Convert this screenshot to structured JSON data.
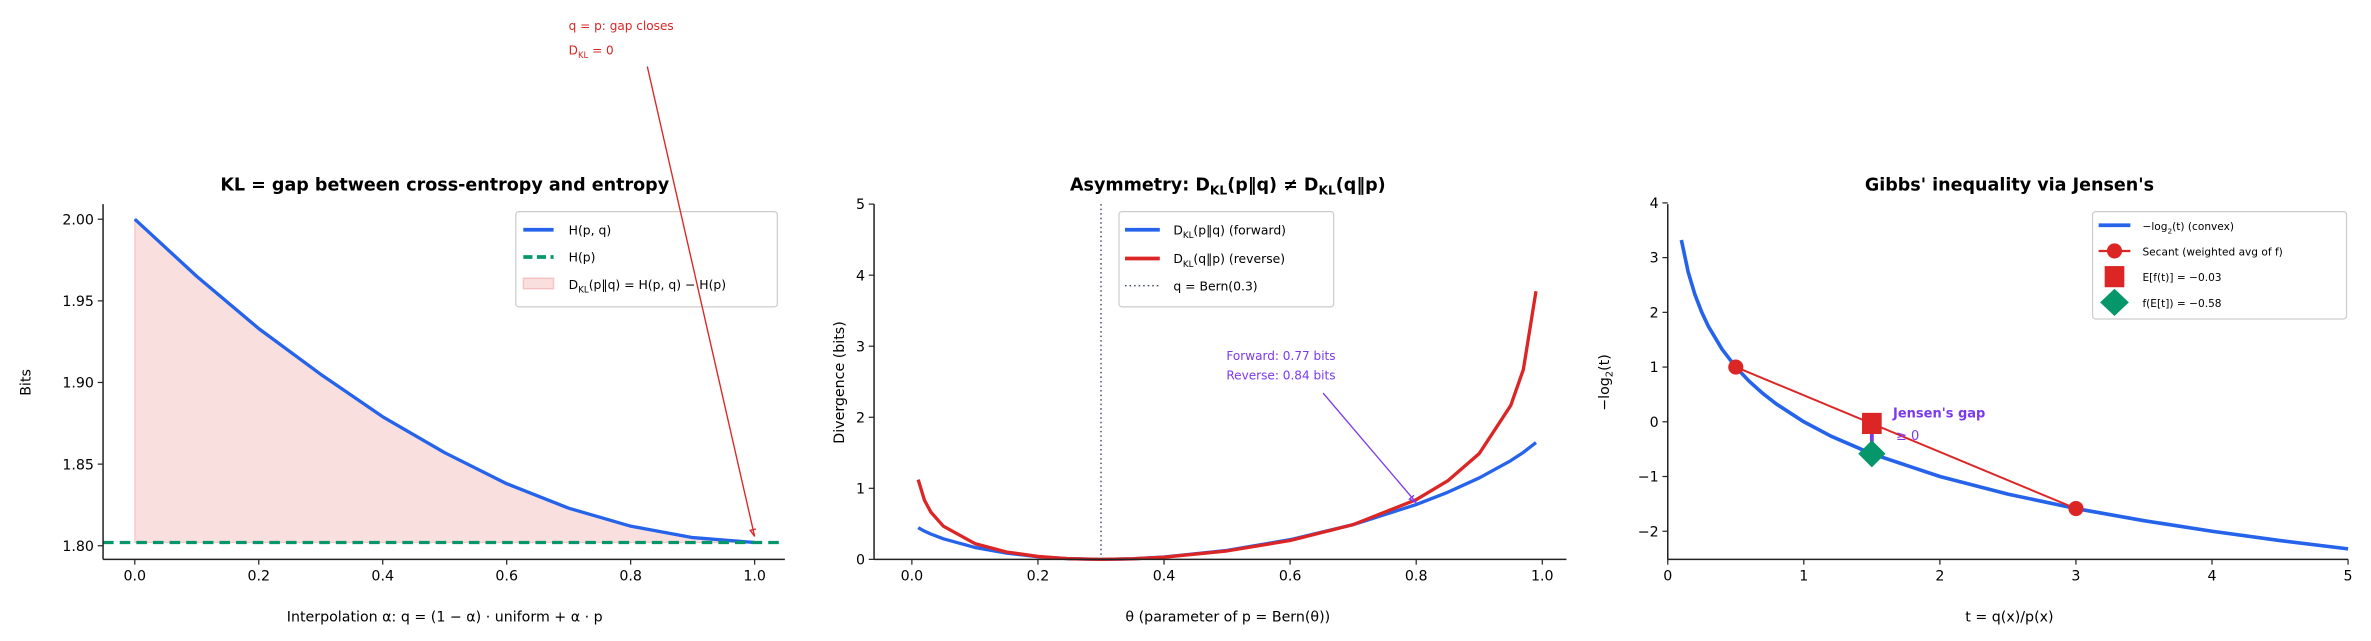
{
  "colors": {
    "blue": "#2563eb",
    "red": "#dc2626",
    "green": "#059669",
    "purple": "#7c3aed",
    "axis": "#222222",
    "vline": "#334155"
  },
  "chart_data": [
    {
      "type": "line",
      "title": "KL = gap between cross-entropy and entropy",
      "xlabel": "Interpolation α: q = (1 − α) · uniform + α · p",
      "ylabel": "Bits",
      "xlim": [
        -0.05,
        1.05
      ],
      "ylim": [
        1.792,
        2.009
      ],
      "xticks": [
        "0.0",
        "0.2",
        "0.4",
        "0.6",
        "0.8",
        "1.0"
      ],
      "yticks": [
        "1.80",
        "1.85",
        "1.90",
        "1.95",
        "2.00"
      ],
      "grid": false,
      "legend": "upper right",
      "x": [
        0,
        0.1,
        0.2,
        0.3,
        0.4,
        0.5,
        0.6,
        0.7,
        0.8,
        0.9,
        1.0
      ],
      "series": [
        {
          "name": "H(p, q)",
          "values": [
            2.0,
            1.965,
            1.933,
            1.905,
            1.879,
            1.857,
            1.838,
            1.823,
            1.812,
            1.805,
            1.802
          ],
          "color": "#2563eb",
          "style": "solid"
        },
        {
          "name": "H(p)",
          "constant": 1.802,
          "color": "#059669",
          "style": "dashed"
        },
        {
          "name": "D_{KL}(p‖q) = H(p, q) − H(p)",
          "kind": "fill_between",
          "color": "#dc2626"
        }
      ],
      "annotation": {
        "lines": [
          "q = p: gap closes",
          "D_{KL} = 0"
        ],
        "target": [
          1.0,
          1.802
        ],
        "color": "#dc2626"
      }
    },
    {
      "type": "line",
      "title": "Asymmetry: D_{KL}(p‖q) ≠ D_{KL}(q‖p)",
      "xlabel": "θ (parameter of p = Bern(θ))",
      "ylabel": "Divergence (bits)",
      "xlim": [
        -0.06,
        1.04
      ],
      "ylim": [
        0,
        5
      ],
      "xticks": [
        "0.0",
        "0.2",
        "0.4",
        "0.6",
        "0.8",
        "1.0"
      ],
      "yticks": [
        "0",
        "1",
        "2",
        "3",
        "4",
        "5"
      ],
      "grid": false,
      "legend": "upper center",
      "x": [
        0.01,
        0.02,
        0.03,
        0.05,
        0.1,
        0.15,
        0.2,
        0.25,
        0.3,
        0.35,
        0.4,
        0.5,
        0.6,
        0.7,
        0.8,
        0.85,
        0.9,
        0.95,
        0.97,
        0.99
      ],
      "series": [
        {
          "name": "D_{KL}(p‖q) (forward)",
          "values": [
            0.446,
            0.397,
            0.357,
            0.289,
            0.168,
            0.088,
            0.037,
            0.009,
            0,
            0.008,
            0.033,
            0.126,
            0.277,
            0.489,
            0.771,
            0.944,
            1.146,
            1.389,
            1.506,
            1.644
          ],
          "color": "#2563eb"
        },
        {
          "name": "D_{KL}(q‖p) (reverse)",
          "values": [
            1.122,
            0.832,
            0.667,
            0.467,
            0.222,
            0.104,
            0.041,
            0.009,
            0,
            0.008,
            0.031,
            0.119,
            0.265,
            0.489,
            0.84,
            1.105,
            1.489,
            2.166,
            2.673,
            3.774
          ],
          "color": "#dc2626"
        }
      ],
      "vline": {
        "name": "q = Bern(0.3)",
        "x": 0.3,
        "style": "dotted"
      },
      "annotation": {
        "lines": [
          "Forward: 0.77 bits",
          "Reverse: 0.84 bits"
        ],
        "target": [
          0.8,
          0.8
        ],
        "color": "#7c3aed"
      }
    },
    {
      "type": "line",
      "title": "Gibbs' inequality via Jensen's",
      "xlabel": "t = q(x)/p(x)",
      "ylabel": "−log_{2}(t)",
      "xlim": [
        0,
        5
      ],
      "ylim": [
        -2.5,
        4
      ],
      "xticks": [
        "0",
        "1",
        "2",
        "3",
        "4",
        "5"
      ],
      "yticks": [
        "−2",
        "−1",
        "0",
        "1",
        "2",
        "3",
        "4"
      ],
      "grid": false,
      "legend": "upper right",
      "curve": {
        "name": "−log_{2}(t) (convex)",
        "x": [
          0.1,
          0.15,
          0.2,
          0.25,
          0.3,
          0.4,
          0.5,
          0.6,
          0.7,
          0.8,
          1,
          1.2,
          1.5,
          2,
          2.5,
          3,
          3.5,
          4,
          4.5,
          5
        ],
        "values": [
          3.322,
          2.737,
          2.322,
          2.0,
          1.737,
          1.322,
          1.0,
          0.737,
          0.515,
          0.322,
          0,
          -0.263,
          -0.585,
          -1.0,
          -1.322,
          -1.585,
          -1.807,
          -2.0,
          -2.17,
          -2.322
        ],
        "color": "#2563eb"
      },
      "secant": {
        "name": "Secant (weighted avg of f)",
        "points": [
          [
            0.5,
            1.0
          ],
          [
            3.0,
            -1.585
          ]
        ],
        "color": "#dc2626"
      },
      "expected_f": {
        "name": "E[f(t)] = −0.03",
        "x": 1.5,
        "y": -0.03,
        "color": "#dc2626",
        "marker": "square"
      },
      "f_expected": {
        "name": "f(E[t]) = −0.58",
        "x": 1.5,
        "y": -0.585,
        "color": "#059669",
        "marker": "diamond"
      },
      "gap_annotation": {
        "lines": [
          "Jensen's gap",
          "≥ 0"
        ],
        "color": "#7c3aed"
      }
    }
  ]
}
